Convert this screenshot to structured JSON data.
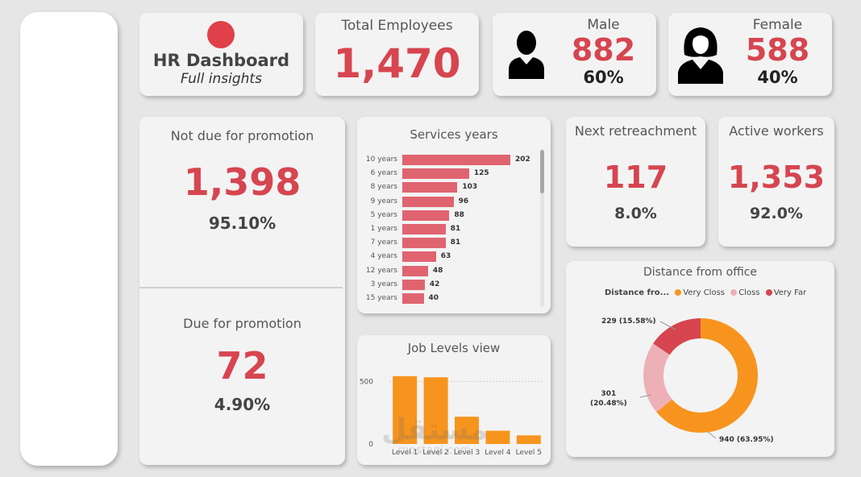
{
  "header": {
    "title": "HR Dashboard",
    "subtitle": "Full insights"
  },
  "kpis": {
    "total_label": "Total Employees",
    "total_value": "1,470",
    "male_label": "Male",
    "male_value": "882",
    "male_pct": "60%",
    "female_label": "Female",
    "female_value": "588",
    "female_pct": "40%",
    "notdue_label": "Not due for promotion",
    "notdue_value": "1,398",
    "notdue_pct": "95.10%",
    "due_label": "Due for promotion",
    "due_value": "72",
    "due_pct": "4.90%",
    "retire_label": "Next retreachment",
    "retire_value": "117",
    "retire_pct": "8.0%",
    "active_label": "Active workers",
    "active_value": "1,353",
    "active_pct": "92.0%"
  },
  "colors": {
    "accent": "#d64550",
    "bar": "#e06470",
    "orange": "#f7941d",
    "pink": "#eeb0b7",
    "logo_dot": "#e0404a"
  },
  "icons": {
    "male": "male-silhouette-icon",
    "female": "female-silhouette-icon"
  },
  "watermark": {
    "text": "مستقل",
    "sub": "mostaql.com"
  },
  "chart_data": [
    {
      "type": "bar",
      "orientation": "horizontal",
      "title": "Services years",
      "categories": [
        "10 years",
        "6 years",
        "8 years",
        "9 years",
        "5 years",
        "1 years",
        "7 years",
        "4 years",
        "12 years",
        "3 years",
        "15 years"
      ],
      "values": [
        202,
        125,
        103,
        96,
        88,
        81,
        81,
        63,
        48,
        42,
        40
      ]
    },
    {
      "type": "bar",
      "title": "Job Levels view",
      "categories": [
        "Level 1",
        "Level 2",
        "Level 3",
        "Level 4",
        "Level 5"
      ],
      "values": [
        543,
        534,
        218,
        106,
        69
      ],
      "ylim": [
        0,
        600
      ],
      "yticks": [
        "0",
        "500"
      ],
      "grid": true
    },
    {
      "type": "pie",
      "donut": true,
      "title": "Distance from office",
      "legend_title": "Distance fro...",
      "series": [
        {
          "name": "Very Closs",
          "value": 940,
          "label": "940 (63.95%)",
          "color": "#f7941d"
        },
        {
          "name": "Closs",
          "value": 301,
          "label": "301 (20.48%)",
          "color": "#eeb0b7"
        },
        {
          "name": "Very Far",
          "value": 229,
          "label": "229 (15.58%)",
          "color": "#d64550"
        }
      ],
      "legend_position": "top"
    }
  ]
}
